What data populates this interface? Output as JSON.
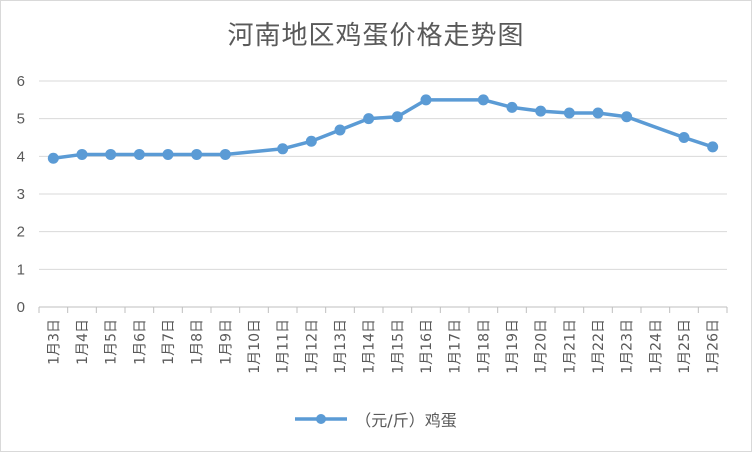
{
  "chart_data": {
    "type": "line",
    "title": "河南地区鸡蛋价格走势图",
    "categories": [
      "1月3日",
      "1月4日",
      "1月5日",
      "1月6日",
      "1月7日",
      "1月8日",
      "1月9日",
      "1月10日",
      "1月11日",
      "1月12日",
      "1月13日",
      "1月14日",
      "1月15日",
      "1月16日",
      "1月17日",
      "1月18日",
      "1月19日",
      "1月20日",
      "1月21日",
      "1月22日",
      "1月23日",
      "1月24日",
      "1月25日",
      "1月26日"
    ],
    "series": [
      {
        "name": "（元/斤）鸡蛋",
        "values": [
          3.95,
          4.05,
          4.05,
          4.05,
          4.05,
          4.05,
          4.05,
          null,
          4.2,
          4.4,
          4.7,
          5.0,
          5.05,
          5.5,
          null,
          5.5,
          5.3,
          5.2,
          5.15,
          5.15,
          5.05,
          null,
          4.5,
          4.25
        ],
        "color": "#5b9bd5"
      }
    ],
    "ylim": [
      0,
      6
    ],
    "yticks": [
      0,
      1,
      2,
      3,
      4,
      5,
      6
    ],
    "grid": true,
    "legend_position": "bottom",
    "xlabel": "",
    "ylabel": ""
  }
}
